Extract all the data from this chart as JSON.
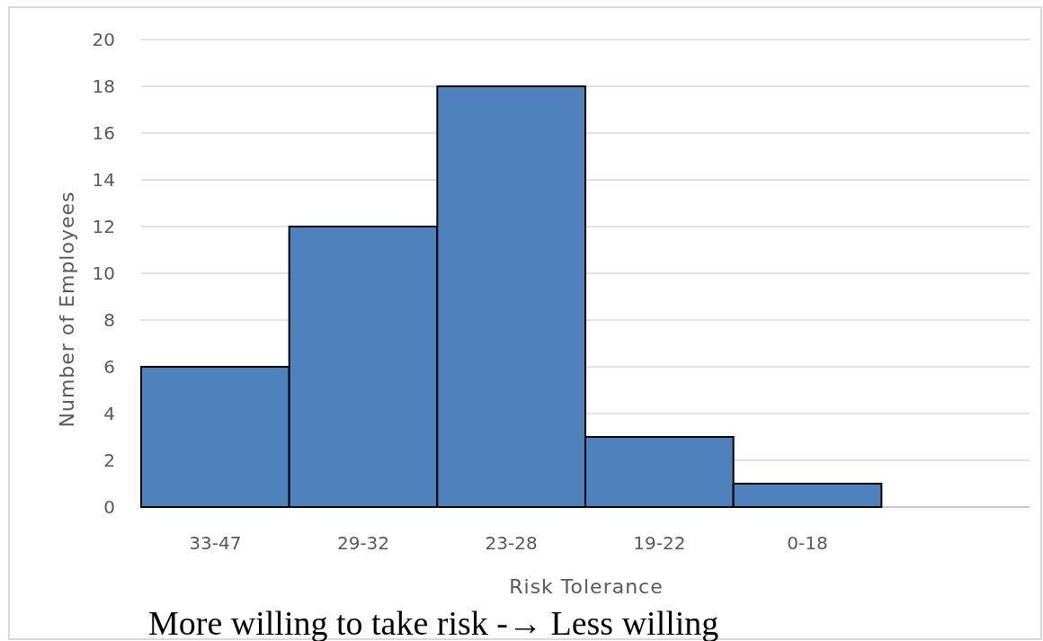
{
  "chart_data": {
    "type": "bar",
    "xlabel": "Risk Tolerance",
    "ylabel": "Number of Employees",
    "categories": [
      "33-47",
      "29-32",
      "23-28",
      "19-22",
      "0-18",
      null
    ],
    "values": [
      6,
      12,
      18,
      3,
      1,
      null
    ],
    "color": "#4f81bd",
    "ylim": [
      0,
      20
    ],
    "yticks": [
      0,
      2,
      4,
      6,
      8,
      10,
      12,
      14,
      16,
      18,
      20
    ],
    "grid": "y",
    "annotations": [
      "More willing to take risk -→ Less willing"
    ]
  }
}
